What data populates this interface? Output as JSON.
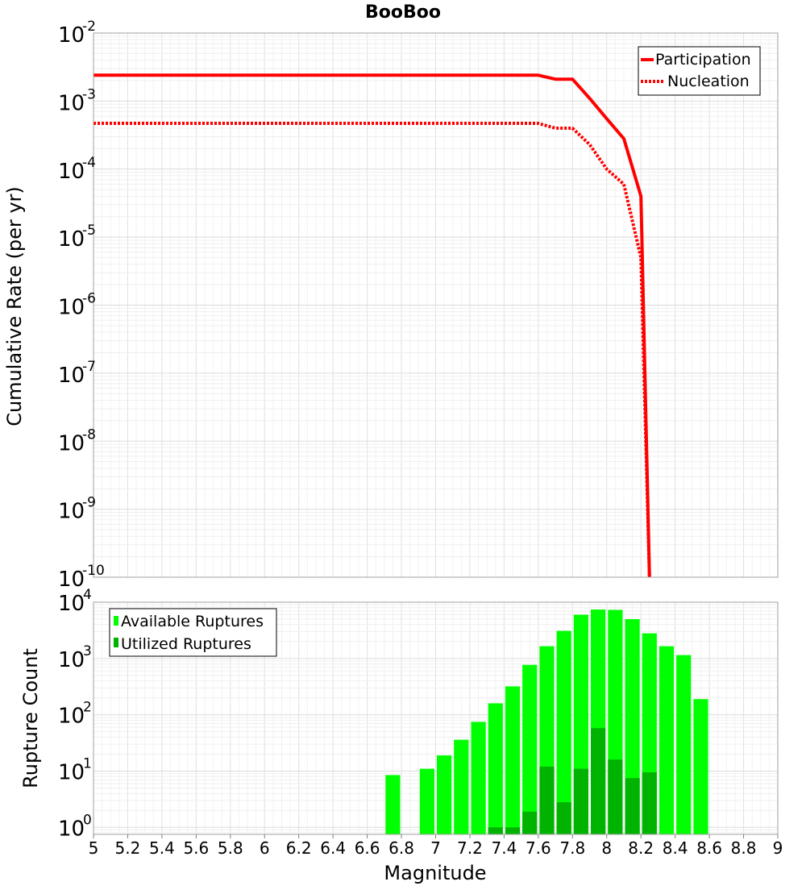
{
  "chart_data": [
    {
      "type": "line",
      "title": "BooBoo",
      "xlabel": "",
      "ylabel": "Cumulative Rate (per yr)",
      "xlim": [
        5,
        9
      ],
      "ylim": [
        1e-10,
        0.01
      ],
      "yscale": "log",
      "grid": true,
      "legend_position": "top-right",
      "y_ticks": [
        {
          "base": "10",
          "exp": "-2"
        },
        {
          "base": "10",
          "exp": "-3"
        },
        {
          "base": "10",
          "exp": "-4"
        },
        {
          "base": "10",
          "exp": "-5"
        },
        {
          "base": "10",
          "exp": "-6"
        },
        {
          "base": "10",
          "exp": "-7"
        },
        {
          "base": "10",
          "exp": "-8"
        },
        {
          "base": "10",
          "exp": "-9"
        },
        {
          "base": "10",
          "exp": "-10"
        }
      ],
      "series": [
        {
          "name": "Participation",
          "color": "#ff0000",
          "style": "solid",
          "x": [
            5.0,
            7.6,
            7.7,
            7.8,
            7.9,
            8.0,
            8.1,
            8.2,
            8.25
          ],
          "y": [
            0.0024,
            0.0024,
            0.0021,
            0.0021,
            0.0011,
            0.00055,
            0.00028,
            4e-05,
            1e-10
          ]
        },
        {
          "name": "Nucleation",
          "color": "#ff0000",
          "style": "dotted",
          "x": [
            5.0,
            7.6,
            7.7,
            7.8,
            7.9,
            8.0,
            8.1,
            8.2,
            8.25
          ],
          "y": [
            0.00047,
            0.00047,
            0.0004,
            0.0004,
            0.00023,
            0.0001,
            6e-05,
            5e-06,
            1e-10
          ]
        }
      ]
    },
    {
      "type": "bar",
      "xlabel": "Magnitude",
      "ylabel": "Rupture Count",
      "xlim": [
        5,
        9
      ],
      "ylim": [
        0.75,
        10000
      ],
      "yscale": "log",
      "grid": true,
      "legend_position": "top-left",
      "x_ticks": [
        "5",
        "5.2",
        "5.4",
        "5.6",
        "5.8",
        "6",
        "6.2",
        "6.4",
        "6.6",
        "6.8",
        "7",
        "7.2",
        "7.4",
        "7.6",
        "7.8",
        "8",
        "8.2",
        "8.4",
        "8.6",
        "8.8",
        "9"
      ],
      "y_ticks": [
        {
          "base": "10",
          "exp": "4",
          "value": 10000
        },
        {
          "base": "10",
          "exp": "3",
          "value": 1000
        },
        {
          "base": "10",
          "exp": "2",
          "value": 100
        },
        {
          "base": "10",
          "exp": "1",
          "value": 10
        },
        {
          "base": "10",
          "exp": "0",
          "value": 1
        }
      ],
      "bin_width": 0.1,
      "series": [
        {
          "name": "Available Ruptures",
          "color": "#00ff00",
          "x": [
            6.75,
            6.95,
            7.05,
            7.15,
            7.25,
            7.35,
            7.45,
            7.55,
            7.65,
            7.75,
            7.85,
            7.95,
            8.05,
            8.15,
            8.25,
            8.35,
            8.45,
            8.55
          ],
          "values": [
            8.5,
            11,
            19,
            36,
            75,
            160,
            320,
            770,
            1650,
            3100,
            6000,
            7400,
            7300,
            5000,
            2800,
            1650,
            1150,
            190
          ]
        },
        {
          "name": "Utilized Ruptures",
          "color": "#00b300",
          "x": [
            7.35,
            7.45,
            7.55,
            7.65,
            7.75,
            7.85,
            7.95,
            8.05,
            8.15,
            8.25
          ],
          "values": [
            1,
            1,
            1.9,
            12,
            2.8,
            11,
            58,
            16,
            7.5,
            9.5
          ]
        }
      ]
    }
  ]
}
